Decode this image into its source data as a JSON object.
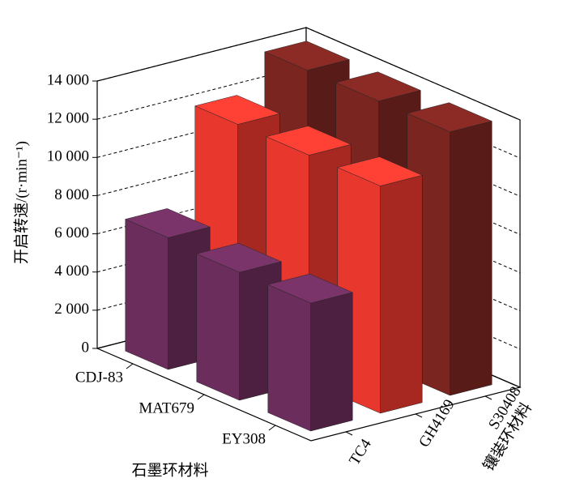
{
  "chart_data": {
    "type": "bar3d",
    "y_label": "开启转速/(r·min⁻¹)",
    "x_label": "石墨环材料",
    "depth_label": "镶装环材料",
    "categories": [
      "CDJ-83",
      "MAT679",
      "EY308"
    ],
    "series": [
      {
        "name": "TC4",
        "color": "#6b2d5c",
        "values": [
          6900,
          6700,
          6700
        ]
      },
      {
        "name": "GH4169",
        "color": "#e8382e",
        "values": [
          11900,
          11900,
          11900
        ]
      },
      {
        "name": "S30408",
        "color": "#7a2520",
        "values": [
          13800,
          13800,
          13800
        ]
      }
    ],
    "ylim": [
      0,
      14000
    ],
    "yticks": [
      0,
      {
        "value": 2000,
        "label": "2 000"
      },
      {
        "value": 4000,
        "label": "4 000"
      },
      {
        "value": 6000,
        "label": "6 000"
      },
      {
        "value": 8000,
        "label": "8 000"
      },
      {
        "value": 10000,
        "label": "10 000"
      },
      {
        "value": 12000,
        "label": "12 000"
      },
      {
        "value": 14000,
        "label": "14 000"
      }
    ],
    "grid": true
  }
}
